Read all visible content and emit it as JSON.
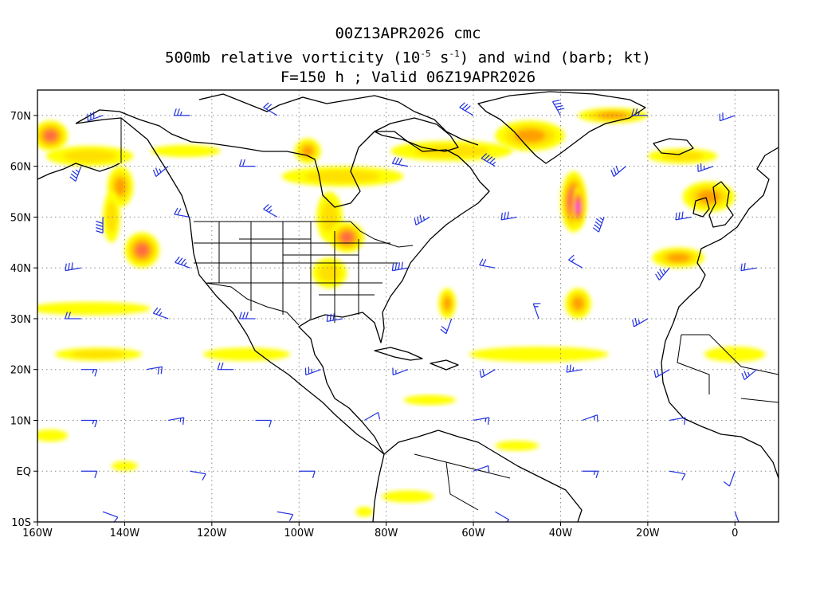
{
  "title": {
    "line1": "00Z13APR2026 cmc",
    "line2_pre": "500mb relative vorticity (10",
    "line2_exp1": "-5",
    "line2_mid": " s",
    "line2_exp2": "-1",
    "line2_post": ") and wind (barb; kt)",
    "line3": "F=150 h ; Valid 06Z19APR2026"
  },
  "map": {
    "lon_range": [
      -160,
      10
    ],
    "lat_range": [
      -10,
      75
    ],
    "lon_ticks": [
      {
        "value": -160,
        "label": "160W"
      },
      {
        "value": -140,
        "label": "140W"
      },
      {
        "value": -120,
        "label": "120W"
      },
      {
        "value": -100,
        "label": "100W"
      },
      {
        "value": -80,
        "label": "80W"
      },
      {
        "value": -60,
        "label": "60W"
      },
      {
        "value": -40,
        "label": "40W"
      },
      {
        "value": -20,
        "label": "20W"
      },
      {
        "value": 0,
        "label": "0"
      }
    ],
    "lat_ticks": [
      {
        "value": 70,
        "label": "70N"
      },
      {
        "value": 60,
        "label": "60N"
      },
      {
        "value": 50,
        "label": "50N"
      },
      {
        "value": 40,
        "label": "40N"
      },
      {
        "value": 30,
        "label": "30N"
      },
      {
        "value": 20,
        "label": "20N"
      },
      {
        "value": 10,
        "label": "10N"
      },
      {
        "value": 0,
        "label": "EQ"
      },
      {
        "value": -10,
        "label": "10S"
      }
    ],
    "colors": {
      "level1": "#ffff00",
      "level2": "#ffe000",
      "level3": "#ffa000",
      "level4": "#ff6a40",
      "level5": "#ff2a6a",
      "level6": "#ff40ff",
      "barb": "#2030e0",
      "coastline": "#000000",
      "grid": "#8a8a8a"
    },
    "vorticity_features": [
      {
        "lon": -157,
        "lat": 66,
        "rx": 4,
        "ry": 3,
        "level": 4
      },
      {
        "lon": -148,
        "lat": 62,
        "rx": 10,
        "ry": 2,
        "level": 2
      },
      {
        "lon": -141,
        "lat": 56,
        "rx": 3,
        "ry": 4,
        "level": 3
      },
      {
        "lon": -143,
        "lat": 50,
        "rx": 2,
        "ry": 5,
        "level": 2
      },
      {
        "lon": -136,
        "lat": 43.5,
        "rx": 4,
        "ry": 3.5,
        "level": 4
      },
      {
        "lon": -126,
        "lat": 63,
        "rx": 8,
        "ry": 1.2,
        "level": 1
      },
      {
        "lon": -98,
        "lat": 63,
        "rx": 3,
        "ry": 2.5,
        "level": 3
      },
      {
        "lon": -90,
        "lat": 58,
        "rx": 14,
        "ry": 2,
        "level": 2
      },
      {
        "lon": -93,
        "lat": 50,
        "rx": 3,
        "ry": 5,
        "level": 2
      },
      {
        "lon": -89,
        "lat": 46,
        "rx": 4,
        "ry": 3,
        "level": 4
      },
      {
        "lon": -93,
        "lat": 39,
        "rx": 4,
        "ry": 3,
        "level": 2
      },
      {
        "lon": -65,
        "lat": 63,
        "rx": 14,
        "ry": 2,
        "level": 2
      },
      {
        "lon": -47,
        "lat": 66,
        "rx": 8,
        "ry": 3,
        "level": 3
      },
      {
        "lon": -37,
        "lat": 53,
        "rx": 3,
        "ry": 6,
        "level": 5
      },
      {
        "lon": -36,
        "lat": 52,
        "rx": 1.5,
        "ry": 4,
        "level": 6
      },
      {
        "lon": -28,
        "lat": 70,
        "rx": 8,
        "ry": 1.5,
        "level": 3
      },
      {
        "lon": -6,
        "lat": 54,
        "rx": 6,
        "ry": 3,
        "level": 3
      },
      {
        "lon": -12,
        "lat": 62,
        "rx": 8,
        "ry": 1.5,
        "level": 2
      },
      {
        "lon": -13,
        "lat": 42,
        "rx": 6,
        "ry": 2,
        "level": 3
      },
      {
        "lon": -66,
        "lat": 33,
        "rx": 2,
        "ry": 3,
        "level": 3
      },
      {
        "lon": -36,
        "lat": 33,
        "rx": 3,
        "ry": 3,
        "level": 3
      },
      {
        "lon": -45,
        "lat": 23,
        "rx": 16,
        "ry": 1.5,
        "level": 1
      },
      {
        "lon": -148,
        "lat": 32,
        "rx": 14,
        "ry": 1.3,
        "level": 1
      },
      {
        "lon": -146,
        "lat": 23,
        "rx": 10,
        "ry": 1.3,
        "level": 2
      },
      {
        "lon": -112,
        "lat": 23,
        "rx": 10,
        "ry": 1.3,
        "level": 1
      },
      {
        "lon": 0,
        "lat": 23,
        "rx": 7,
        "ry": 1.5,
        "level": 1
      },
      {
        "lon": -157,
        "lat": 7,
        "rx": 4,
        "ry": 1.2,
        "level": 1
      },
      {
        "lon": -70,
        "lat": 14,
        "rx": 6,
        "ry": 1,
        "level": 1
      },
      {
        "lon": -75,
        "lat": -5,
        "rx": 6,
        "ry": 1.2,
        "level": 1
      },
      {
        "lon": -50,
        "lat": 5,
        "rx": 5,
        "ry": 1,
        "level": 1
      },
      {
        "lon": -140,
        "lat": 1,
        "rx": 3,
        "ry": 1,
        "level": 1
      },
      {
        "lon": -85,
        "lat": -8,
        "rx": 2,
        "ry": 1,
        "level": 1
      }
    ],
    "wind_barbs": [
      {
        "lon": -145,
        "lat": 70,
        "dir": 250,
        "speed": 30
      },
      {
        "lon": -125,
        "lat": 70,
        "dir": 270,
        "speed": 25
      },
      {
        "lon": -105,
        "lat": 70,
        "dir": 300,
        "speed": 20
      },
      {
        "lon": -60,
        "lat": 70,
        "dir": 300,
        "speed": 30
      },
      {
        "lon": -40,
        "lat": 70,
        "dir": 330,
        "speed": 40
      },
      {
        "lon": -20,
        "lat": 70,
        "dir": 270,
        "speed": 25
      },
      {
        "lon": 0,
        "lat": 70,
        "dir": 250,
        "speed": 20
      },
      {
        "lon": -150,
        "lat": 60,
        "dir": 200,
        "speed": 35
      },
      {
        "lon": -130,
        "lat": 60,
        "dir": 230,
        "speed": 25
      },
      {
        "lon": -110,
        "lat": 60,
        "dir": 270,
        "speed": 20
      },
      {
        "lon": -75,
        "lat": 60,
        "dir": 280,
        "speed": 30
      },
      {
        "lon": -55,
        "lat": 60,
        "dir": 300,
        "speed": 45
      },
      {
        "lon": -25,
        "lat": 60,
        "dir": 230,
        "speed": 30
      },
      {
        "lon": -5,
        "lat": 60,
        "dir": 250,
        "speed": 25
      },
      {
        "lon": -145,
        "lat": 50,
        "dir": 180,
        "speed": 40
      },
      {
        "lon": -125,
        "lat": 50,
        "dir": 280,
        "speed": 20
      },
      {
        "lon": -105,
        "lat": 50,
        "dir": 300,
        "speed": 25
      },
      {
        "lon": -70,
        "lat": 50,
        "dir": 240,
        "speed": 35
      },
      {
        "lon": -50,
        "lat": 50,
        "dir": 260,
        "speed": 30
      },
      {
        "lon": -30,
        "lat": 50,
        "dir": 200,
        "speed": 45
      },
      {
        "lon": -10,
        "lat": 50,
        "dir": 260,
        "speed": 30
      },
      {
        "lon": -150,
        "lat": 40,
        "dir": 260,
        "speed": 30
      },
      {
        "lon": -125,
        "lat": 40,
        "dir": 290,
        "speed": 35
      },
      {
        "lon": -75,
        "lat": 40,
        "dir": 260,
        "speed": 40
      },
      {
        "lon": -55,
        "lat": 40,
        "dir": 280,
        "speed": 20
      },
      {
        "lon": -35,
        "lat": 40,
        "dir": 300,
        "speed": 15
      },
      {
        "lon": -15,
        "lat": 40,
        "dir": 220,
        "speed": 35
      },
      {
        "lon": 5,
        "lat": 40,
        "dir": 260,
        "speed": 20
      },
      {
        "lon": -150,
        "lat": 30,
        "dir": 270,
        "speed": 20
      },
      {
        "lon": -130,
        "lat": 30,
        "dir": 290,
        "speed": 25
      },
      {
        "lon": -110,
        "lat": 30,
        "dir": 270,
        "speed": 30
      },
      {
        "lon": -90,
        "lat": 30,
        "dir": 260,
        "speed": 30
      },
      {
        "lon": -65,
        "lat": 30,
        "dir": 200,
        "speed": 20
      },
      {
        "lon": -45,
        "lat": 30,
        "dir": 340,
        "speed": 15
      },
      {
        "lon": -20,
        "lat": 30,
        "dir": 240,
        "speed": 25
      },
      {
        "lon": -150,
        "lat": 20,
        "dir": 90,
        "speed": 15
      },
      {
        "lon": -135,
        "lat": 20,
        "dir": 80,
        "speed": 20
      },
      {
        "lon": -115,
        "lat": 20,
        "dir": 270,
        "speed": 20
      },
      {
        "lon": -95,
        "lat": 20,
        "dir": 250,
        "speed": 25
      },
      {
        "lon": -75,
        "lat": 20,
        "dir": 250,
        "speed": 15
      },
      {
        "lon": -55,
        "lat": 20,
        "dir": 240,
        "speed": 20
      },
      {
        "lon": -35,
        "lat": 20,
        "dir": 260,
        "speed": 25
      },
      {
        "lon": -15,
        "lat": 20,
        "dir": 240,
        "speed": 20
      },
      {
        "lon": 5,
        "lat": 20,
        "dir": 230,
        "speed": 25
      },
      {
        "lon": -150,
        "lat": 10,
        "dir": 90,
        "speed": 15
      },
      {
        "lon": -130,
        "lat": 10,
        "dir": 80,
        "speed": 15
      },
      {
        "lon": -110,
        "lat": 10,
        "dir": 90,
        "speed": 10
      },
      {
        "lon": -85,
        "lat": 10,
        "dir": 60,
        "speed": 10
      },
      {
        "lon": -60,
        "lat": 10,
        "dir": 80,
        "speed": 15
      },
      {
        "lon": -35,
        "lat": 10,
        "dir": 70,
        "speed": 15
      },
      {
        "lon": -15,
        "lat": 10,
        "dir": 80,
        "speed": 10
      },
      {
        "lon": -150,
        "lat": 0,
        "dir": 90,
        "speed": 10
      },
      {
        "lon": -125,
        "lat": 0,
        "dir": 100,
        "speed": 10
      },
      {
        "lon": -100,
        "lat": 0,
        "dir": 90,
        "speed": 10
      },
      {
        "lon": -60,
        "lat": 0,
        "dir": 70,
        "speed": 10
      },
      {
        "lon": -35,
        "lat": 0,
        "dir": 90,
        "speed": 15
      },
      {
        "lon": -15,
        "lat": 0,
        "dir": 100,
        "speed": 10
      },
      {
        "lon": 0,
        "lat": 0,
        "dir": 200,
        "speed": 10
      },
      {
        "lon": -145,
        "lat": -8,
        "dir": 110,
        "speed": 10
      },
      {
        "lon": -105,
        "lat": -8,
        "dir": 100,
        "speed": 10
      },
      {
        "lon": -55,
        "lat": -8,
        "dir": 120,
        "speed": 10
      },
      {
        "lon": 0,
        "lat": -8,
        "dir": 160,
        "speed": 10
      }
    ]
  }
}
